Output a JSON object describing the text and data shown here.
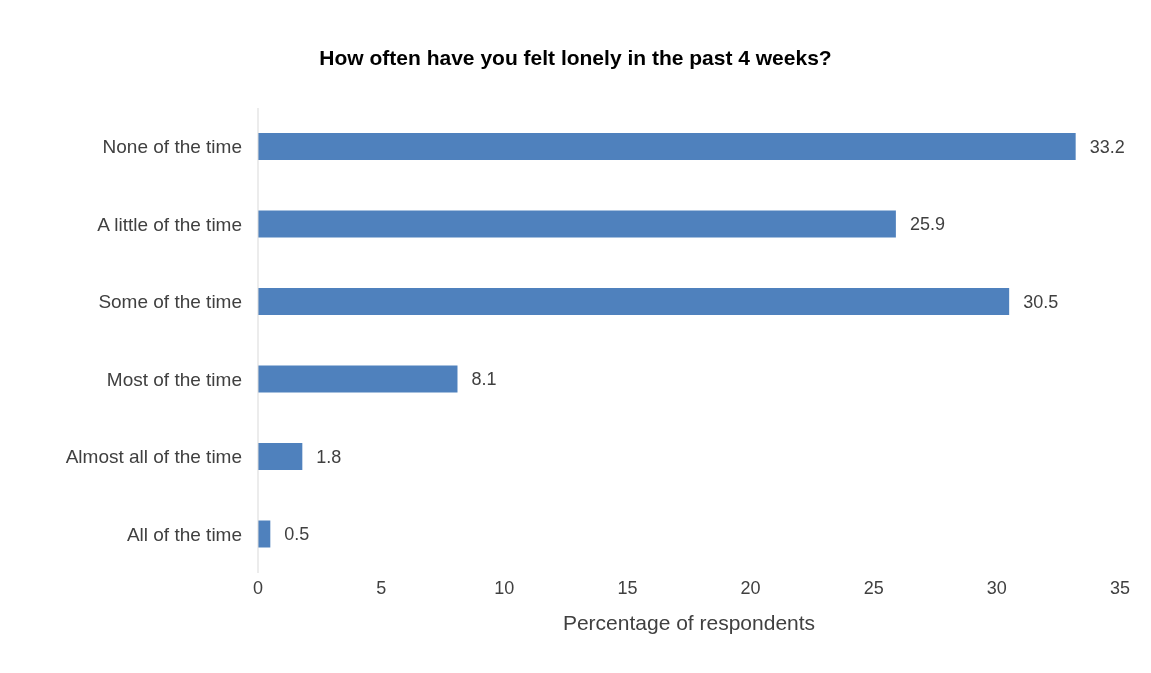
{
  "chart_data": {
    "type": "bar",
    "orientation": "horizontal",
    "title": "How often have you felt lonely in the past 4 weeks?",
    "xlabel": "Percentage of respondents",
    "categories": [
      "None of the time",
      "A little of the time",
      "Some of the time",
      "Most of the time",
      "Almost all of the time",
      "All of the time"
    ],
    "values": [
      33.2,
      25.9,
      30.5,
      8.1,
      1.8,
      0.5
    ],
    "color": "#4f81bd",
    "xlim": [
      0,
      35
    ],
    "xticks": [
      0,
      5,
      10,
      15,
      20,
      25,
      30,
      35
    ],
    "grid": false,
    "data_labels": true
  }
}
